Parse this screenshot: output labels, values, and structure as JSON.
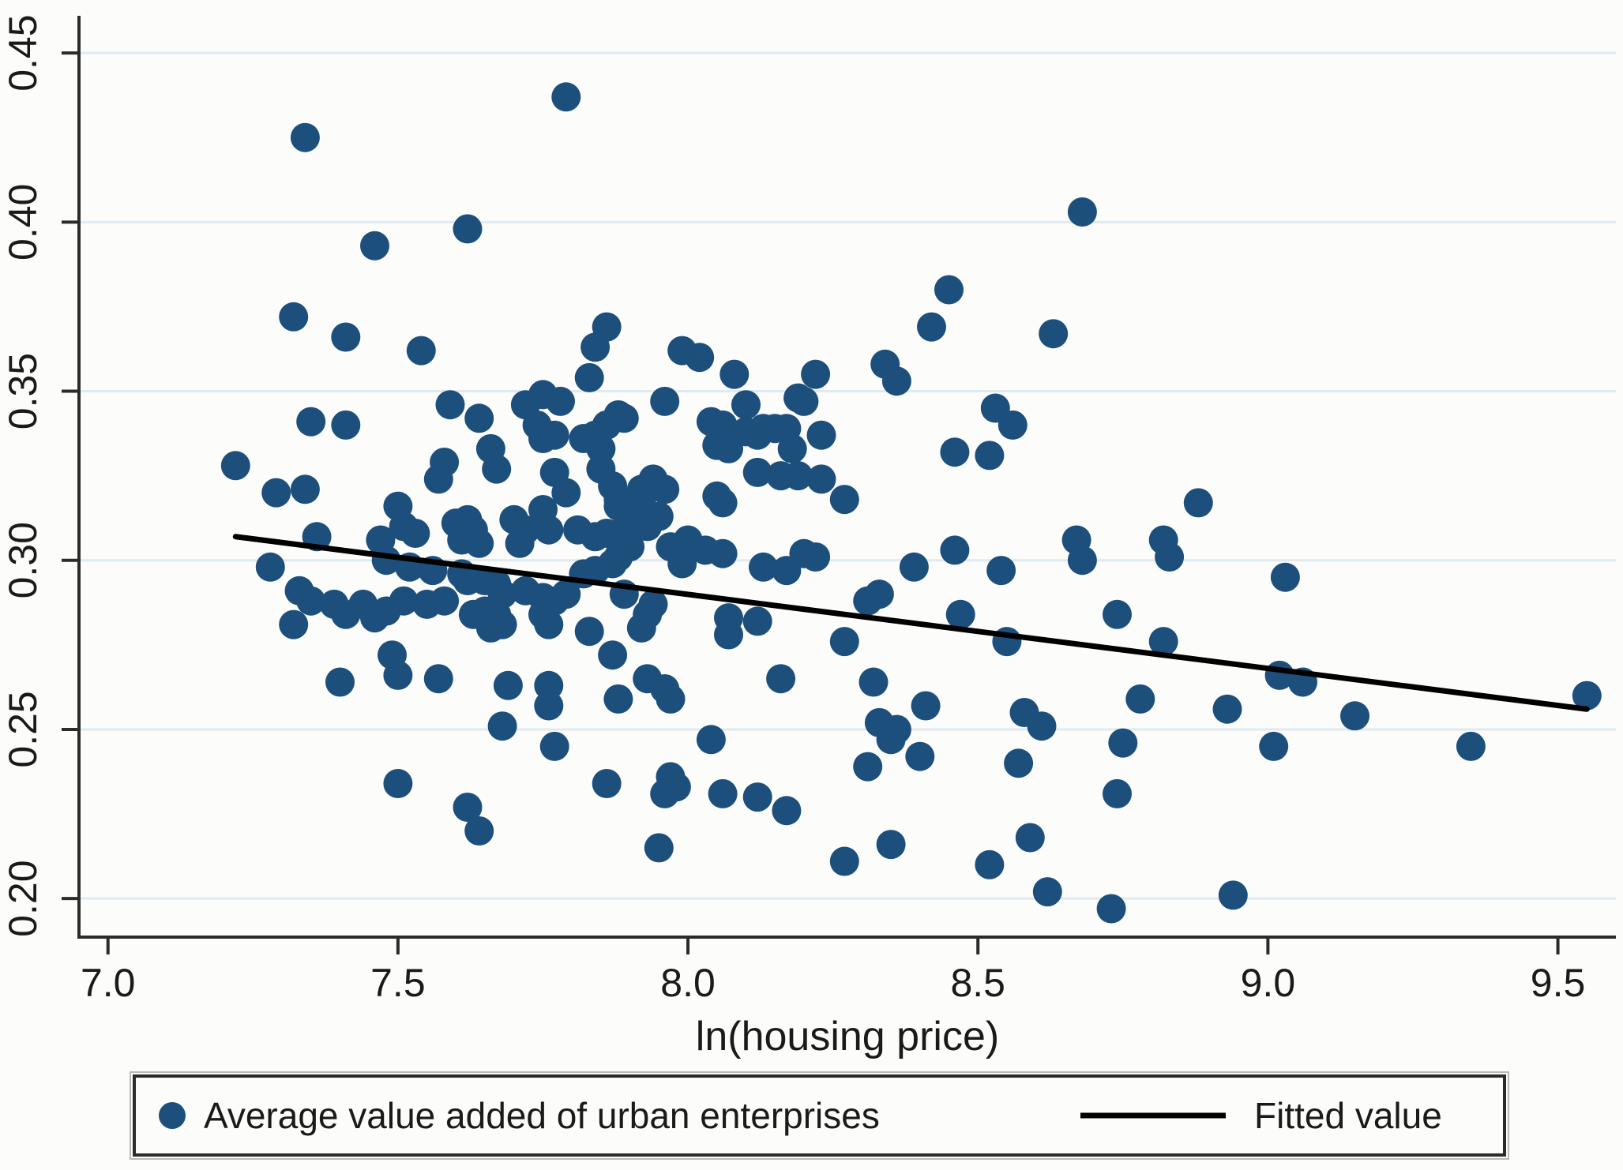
{
  "figure": {
    "background": "#fcfcfa",
    "axis_color": "#2b2b2b",
    "gridline_color": "#dfeaf2",
    "text_color": "#1a1a1a",
    "accent_marker_color": "#1d4f7d",
    "fit_line_color": "#000000"
  },
  "chart_data": {
    "type": "scatter",
    "title": "",
    "xlabel": "ln(housing price)",
    "ylabel": "",
    "grid": "horizontal",
    "legend_position": "bottom",
    "xlim": [
      6.95,
      9.6
    ],
    "ylim": [
      0.1886,
      0.461
    ],
    "x_ticks": [
      7.0,
      7.5,
      8.0,
      8.5,
      9.0,
      9.5
    ],
    "x_tick_labels": [
      "7.0",
      "7.5",
      "8.0",
      "8.5",
      "9.0",
      "9.5"
    ],
    "y_ticks": [
      0.2,
      0.25,
      0.3,
      0.35,
      0.4,
      0.45
    ],
    "y_tick_labels": [
      "0.20",
      "0.25",
      "0.30",
      "0.35",
      "0.40",
      "0.45"
    ],
    "series": [
      {
        "name": "Average value added of urban enterprises",
        "type": "scatter",
        "marker_color": "#1d4f7d",
        "points": [
          [
            7.79,
            0.437
          ],
          [
            7.34,
            0.425
          ],
          [
            7.46,
            0.393
          ],
          [
            7.62,
            0.398
          ],
          [
            7.32,
            0.372
          ],
          [
            7.41,
            0.366
          ],
          [
            7.54,
            0.362
          ],
          [
            8.68,
            0.403
          ],
          [
            8.45,
            0.38
          ],
          [
            8.42,
            0.369
          ],
          [
            8.63,
            0.367
          ],
          [
            7.86,
            0.369
          ],
          [
            7.84,
            0.363
          ],
          [
            7.99,
            0.362
          ],
          [
            8.02,
            0.36
          ],
          [
            8.34,
            0.358
          ],
          [
            8.36,
            0.353
          ],
          [
            8.08,
            0.355
          ],
          [
            8.22,
            0.355
          ],
          [
            8.2,
            0.347
          ],
          [
            8.88,
            0.317
          ],
          [
            7.35,
            0.341
          ],
          [
            7.41,
            0.34
          ],
          [
            7.59,
            0.346
          ],
          [
            7.64,
            0.342
          ],
          [
            7.75,
            0.349
          ],
          [
            7.78,
            0.347
          ],
          [
            7.72,
            0.346
          ],
          [
            7.74,
            0.34
          ],
          [
            7.75,
            0.336
          ],
          [
            7.77,
            0.337
          ],
          [
            7.83,
            0.354
          ],
          [
            7.88,
            0.343
          ],
          [
            7.86,
            0.34
          ],
          [
            7.84,
            0.337
          ],
          [
            7.82,
            0.336
          ],
          [
            7.85,
            0.333
          ],
          [
            7.89,
            0.342
          ],
          [
            7.96,
            0.347
          ],
          [
            8.1,
            0.346
          ],
          [
            8.04,
            0.341
          ],
          [
            8.06,
            0.34
          ],
          [
            8.1,
            0.338
          ],
          [
            8.05,
            0.334
          ],
          [
            8.07,
            0.333
          ],
          [
            8.12,
            0.337
          ],
          [
            8.15,
            0.339
          ],
          [
            8.13,
            0.339
          ],
          [
            8.17,
            0.339
          ],
          [
            8.18,
            0.333
          ],
          [
            8.23,
            0.337
          ],
          [
            8.19,
            0.348
          ],
          [
            8.53,
            0.345
          ],
          [
            8.56,
            0.34
          ],
          [
            8.46,
            0.332
          ],
          [
            8.52,
            0.331
          ],
          [
            7.66,
            0.333
          ],
          [
            7.58,
            0.329
          ],
          [
            7.57,
            0.324
          ],
          [
            7.67,
            0.327
          ],
          [
            7.77,
            0.326
          ],
          [
            7.79,
            0.32
          ],
          [
            7.22,
            0.328
          ],
          [
            7.29,
            0.32
          ],
          [
            7.34,
            0.321
          ],
          [
            7.5,
            0.316
          ],
          [
            7.51,
            0.31
          ],
          [
            7.53,
            0.308
          ],
          [
            7.6,
            0.311
          ],
          [
            7.62,
            0.312
          ],
          [
            7.63,
            0.309
          ],
          [
            7.61,
            0.306
          ],
          [
            7.64,
            0.305
          ],
          [
            7.7,
            0.312
          ],
          [
            7.72,
            0.309
          ],
          [
            7.71,
            0.305
          ],
          [
            7.75,
            0.315
          ],
          [
            7.76,
            0.309
          ],
          [
            7.81,
            0.309
          ],
          [
            7.84,
            0.307
          ],
          [
            7.86,
            0.308
          ],
          [
            7.88,
            0.316
          ],
          [
            7.91,
            0.315
          ],
          [
            7.92,
            0.318
          ],
          [
            7.85,
            0.327
          ],
          [
            7.87,
            0.322
          ],
          [
            7.88,
            0.318
          ],
          [
            7.94,
            0.324
          ],
          [
            7.96,
            0.321
          ],
          [
            7.92,
            0.321
          ],
          [
            7.89,
            0.309
          ],
          [
            7.9,
            0.304
          ],
          [
            7.93,
            0.31
          ],
          [
            7.95,
            0.313
          ],
          [
            8.05,
            0.319
          ],
          [
            8.06,
            0.317
          ],
          [
            8.12,
            0.326
          ],
          [
            8.16,
            0.325
          ],
          [
            8.19,
            0.325
          ],
          [
            8.23,
            0.324
          ],
          [
            8.27,
            0.318
          ],
          [
            7.36,
            0.307
          ],
          [
            7.47,
            0.306
          ],
          [
            7.48,
            0.3
          ],
          [
            7.28,
            0.298
          ],
          [
            7.52,
            0.298
          ],
          [
            7.56,
            0.297
          ],
          [
            7.61,
            0.296
          ],
          [
            7.62,
            0.294
          ],
          [
            7.65,
            0.294
          ],
          [
            7.67,
            0.293
          ],
          [
            7.68,
            0.29
          ],
          [
            7.72,
            0.291
          ],
          [
            7.75,
            0.289
          ],
          [
            7.77,
            0.288
          ],
          [
            7.79,
            0.29
          ],
          [
            7.82,
            0.296
          ],
          [
            7.84,
            0.297
          ],
          [
            7.87,
            0.299
          ],
          [
            7.88,
            0.301
          ],
          [
            7.97,
            0.304
          ],
          [
            8.0,
            0.306
          ],
          [
            8.03,
            0.303
          ],
          [
            8.06,
            0.302
          ],
          [
            7.99,
            0.299
          ],
          [
            8.13,
            0.298
          ],
          [
            8.17,
            0.297
          ],
          [
            8.2,
            0.302
          ],
          [
            8.22,
            0.301
          ],
          [
            8.46,
            0.303
          ],
          [
            8.39,
            0.298
          ],
          [
            8.54,
            0.297
          ],
          [
            8.67,
            0.306
          ],
          [
            8.68,
            0.3
          ],
          [
            8.82,
            0.306
          ],
          [
            8.83,
            0.301
          ],
          [
            9.03,
            0.295
          ],
          [
            7.33,
            0.291
          ],
          [
            7.35,
            0.288
          ],
          [
            7.32,
            0.281
          ],
          [
            7.39,
            0.287
          ],
          [
            7.41,
            0.284
          ],
          [
            7.44,
            0.287
          ],
          [
            7.46,
            0.283
          ],
          [
            7.48,
            0.285
          ],
          [
            7.51,
            0.288
          ],
          [
            7.55,
            0.287
          ],
          [
            7.58,
            0.288
          ],
          [
            7.63,
            0.284
          ],
          [
            7.65,
            0.285
          ],
          [
            7.67,
            0.284
          ],
          [
            7.68,
            0.281
          ],
          [
            7.66,
            0.28
          ],
          [
            7.75,
            0.284
          ],
          [
            7.76,
            0.281
          ],
          [
            7.83,
            0.279
          ],
          [
            7.89,
            0.29
          ],
          [
            7.94,
            0.287
          ],
          [
            7.93,
            0.284
          ],
          [
            7.92,
            0.28
          ],
          [
            8.07,
            0.283
          ],
          [
            8.07,
            0.278
          ],
          [
            8.12,
            0.282
          ],
          [
            8.27,
            0.276
          ],
          [
            8.31,
            0.288
          ],
          [
            8.33,
            0.29
          ],
          [
            8.47,
            0.284
          ],
          [
            8.55,
            0.276
          ],
          [
            8.74,
            0.284
          ],
          [
            8.82,
            0.276
          ],
          [
            7.49,
            0.272
          ],
          [
            7.5,
            0.266
          ],
          [
            7.87,
            0.272
          ],
          [
            7.4,
            0.264
          ],
          [
            7.57,
            0.265
          ],
          [
            7.69,
            0.263
          ],
          [
            7.76,
            0.263
          ],
          [
            7.76,
            0.257
          ],
          [
            7.68,
            0.251
          ],
          [
            7.77,
            0.245
          ],
          [
            7.88,
            0.259
          ],
          [
            7.93,
            0.265
          ],
          [
            7.96,
            0.262
          ],
          [
            7.97,
            0.259
          ],
          [
            8.16,
            0.265
          ],
          [
            8.32,
            0.264
          ],
          [
            8.41,
            0.257
          ],
          [
            8.33,
            0.252
          ],
          [
            8.36,
            0.25
          ],
          [
            8.35,
            0.247
          ],
          [
            8.4,
            0.242
          ],
          [
            8.31,
            0.239
          ],
          [
            8.04,
            0.247
          ],
          [
            8.58,
            0.255
          ],
          [
            8.61,
            0.251
          ],
          [
            8.57,
            0.24
          ],
          [
            8.78,
            0.259
          ],
          [
            8.75,
            0.246
          ],
          [
            8.93,
            0.256
          ],
          [
            9.01,
            0.245
          ],
          [
            9.02,
            0.266
          ],
          [
            9.06,
            0.264
          ],
          [
            9.15,
            0.254
          ],
          [
            9.35,
            0.245
          ],
          [
            9.55,
            0.26
          ],
          [
            8.74,
            0.231
          ],
          [
            7.5,
            0.234
          ],
          [
            7.62,
            0.227
          ],
          [
            7.64,
            0.22
          ],
          [
            7.86,
            0.234
          ],
          [
            7.97,
            0.236
          ],
          [
            7.98,
            0.233
          ],
          [
            7.96,
            0.231
          ],
          [
            8.06,
            0.231
          ],
          [
            8.12,
            0.23
          ],
          [
            8.17,
            0.226
          ],
          [
            7.95,
            0.215
          ],
          [
            8.27,
            0.211
          ],
          [
            8.35,
            0.216
          ],
          [
            8.52,
            0.21
          ],
          [
            8.59,
            0.218
          ],
          [
            8.62,
            0.202
          ],
          [
            8.94,
            0.201
          ],
          [
            8.73,
            0.197
          ]
        ]
      },
      {
        "name": "Fitted value",
        "type": "line",
        "color": "#000000",
        "points": [
          [
            7.22,
            0.307
          ],
          [
            9.55,
            0.256
          ]
        ]
      }
    ]
  }
}
